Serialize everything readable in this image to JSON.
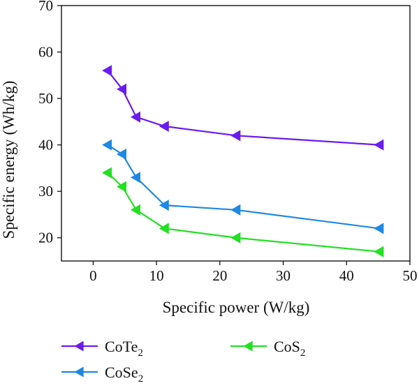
{
  "chart_data": {
    "type": "line",
    "xlabel": "Specific power (W/kg)",
    "ylabel": "Specific energy (Wh/kg)",
    "xlim": [
      -5,
      50
    ],
    "ylim": [
      15,
      70
    ],
    "xticks": [
      0,
      10,
      20,
      30,
      40,
      50
    ],
    "yticks": [
      20,
      30,
      40,
      50,
      60,
      70
    ],
    "grid": false,
    "legend_position": "bottom",
    "marker": "left-pointing-triangle",
    "series": [
      {
        "name": "CoTe2",
        "name_base": "CoTe",
        "name_sub": "2",
        "color": "#6a1bf0",
        "x": [
          2.3,
          4.6,
          6.8,
          11.3,
          22.6,
          45.2
        ],
        "y": [
          56,
          52,
          46,
          44,
          42,
          40
        ]
      },
      {
        "name": "CoSe2",
        "name_base": "CoSe",
        "name_sub": "2",
        "color": "#1e88e5",
        "x": [
          2.3,
          4.6,
          6.8,
          11.3,
          22.6,
          45.2
        ],
        "y": [
          40,
          38,
          33,
          27,
          26,
          22
        ]
      },
      {
        "name": "CoS2",
        "name_base": "CoS",
        "name_sub": "2",
        "color": "#22e022",
        "x": [
          2.3,
          4.6,
          6.8,
          11.3,
          22.6,
          45.2
        ],
        "y": [
          34,
          31,
          26,
          22,
          20,
          17
        ]
      }
    ]
  }
}
